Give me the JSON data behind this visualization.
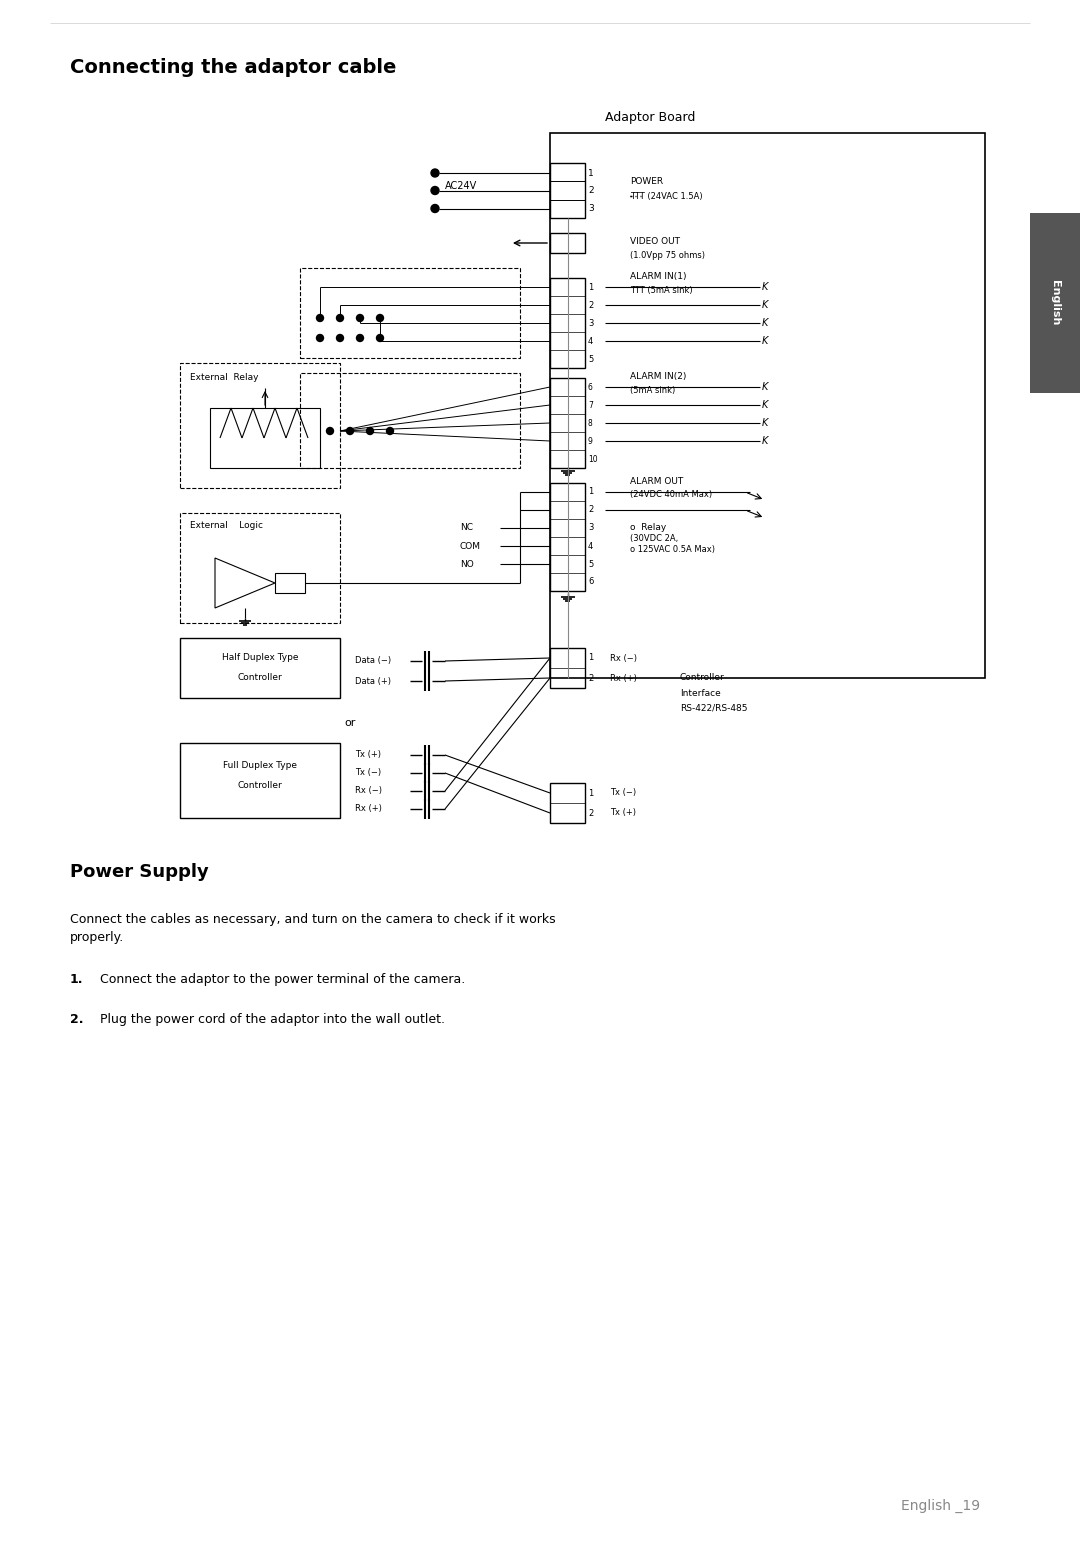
{
  "title": "Connecting the adaptor cable",
  "section2_title": "Power Supply",
  "section2_body": "Connect the cables as necessary, and turn on the camera to check if it works\nproperly.",
  "section2_item1": "Connect the adaptor to the power terminal of the camera.",
  "section2_item2": "Plug the power cord of the adaptor into the wall outlet.",
  "adaptor_board_label": "Adaptor Board",
  "english_tab": "English",
  "footer": "English _19",
  "bg_color": "#ffffff",
  "text_color": "#000000",
  "gray_color": "#555555"
}
